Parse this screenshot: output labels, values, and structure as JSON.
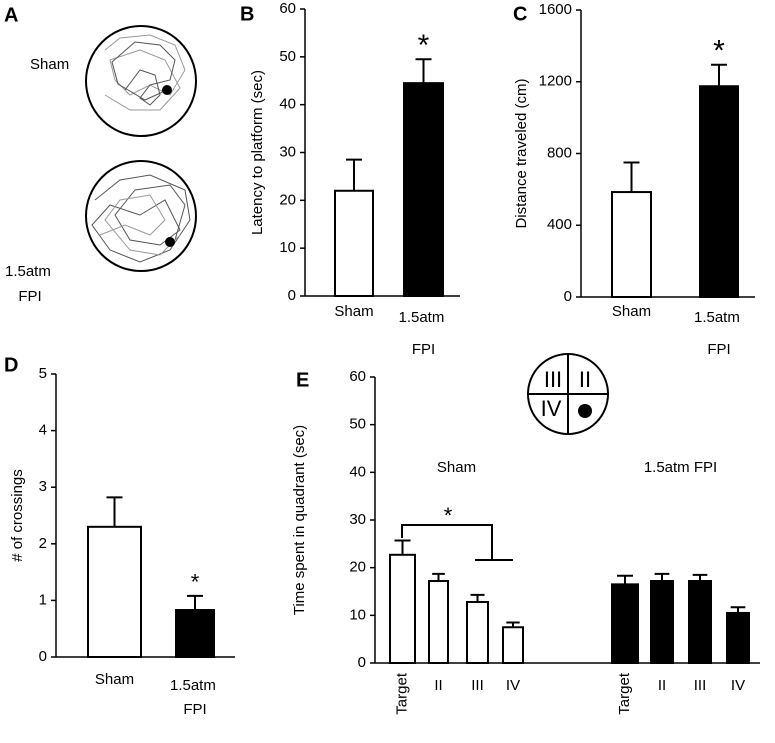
{
  "panel_a": {
    "panel_label": "A",
    "conditions": [
      "Sham",
      "1.5atm FPI"
    ]
  },
  "chart_data": [
    {
      "type": "bar",
      "panel_label": "B",
      "ylabel": "Latency to platform (sec)",
      "categories": [
        "Sham",
        "1.5atm FPI"
      ],
      "values": [
        22,
        44.5
      ],
      "errors": [
        6.5,
        5
      ],
      "colors": [
        "#ffffff",
        "#000000"
      ],
      "ylim": [
        0,
        60
      ],
      "yticks": [
        0,
        10,
        20,
        30,
        40,
        50,
        60
      ],
      "annotation": "*"
    },
    {
      "type": "bar",
      "panel_label": "C",
      "ylabel": "Distance traveled (cm)",
      "categories": [
        "Sham",
        "1.5atm FPI"
      ],
      "values": [
        585,
        1175
      ],
      "errors": [
        165,
        120
      ],
      "colors": [
        "#ffffff",
        "#000000"
      ],
      "ylim": [
        0,
        1600
      ],
      "yticks": [
        0,
        400,
        800,
        1200,
        1600
      ],
      "annotation": "*"
    },
    {
      "type": "bar",
      "panel_label": "D",
      "ylabel": "# of crossings",
      "categories": [
        "Sham",
        "1.5atm FPI"
      ],
      "values": [
        2.3,
        0.83
      ],
      "errors": [
        0.52,
        0.25
      ],
      "colors": [
        "#ffffff",
        "#000000"
      ],
      "ylim": [
        0,
        5
      ],
      "yticks": [
        0,
        1,
        2,
        3,
        4,
        5
      ],
      "annotation": "*"
    },
    {
      "type": "grouped_bar",
      "panel_label": "E",
      "ylabel": "Time spent in quadrant (sec)",
      "categories": [
        "Target",
        "II",
        "III",
        "IV"
      ],
      "series": [
        {
          "name": "Sham",
          "color": "#ffffff",
          "values": [
            22.7,
            17.2,
            12.8,
            7.5
          ],
          "errors": [
            3,
            1.5,
            1.5,
            1
          ]
        },
        {
          "name": "1.5atm FPI",
          "color": "#000000",
          "values": [
            16.5,
            17.2,
            17.2,
            10.5
          ],
          "errors": [
            1.8,
            1.5,
            1.3,
            1.2
          ]
        }
      ],
      "ylim": [
        0,
        60
      ],
      "yticks": [
        0,
        10,
        20,
        30,
        40,
        50,
        60
      ],
      "annotation": "*",
      "inset_labels": [
        "III",
        "II",
        "IV"
      ]
    }
  ]
}
